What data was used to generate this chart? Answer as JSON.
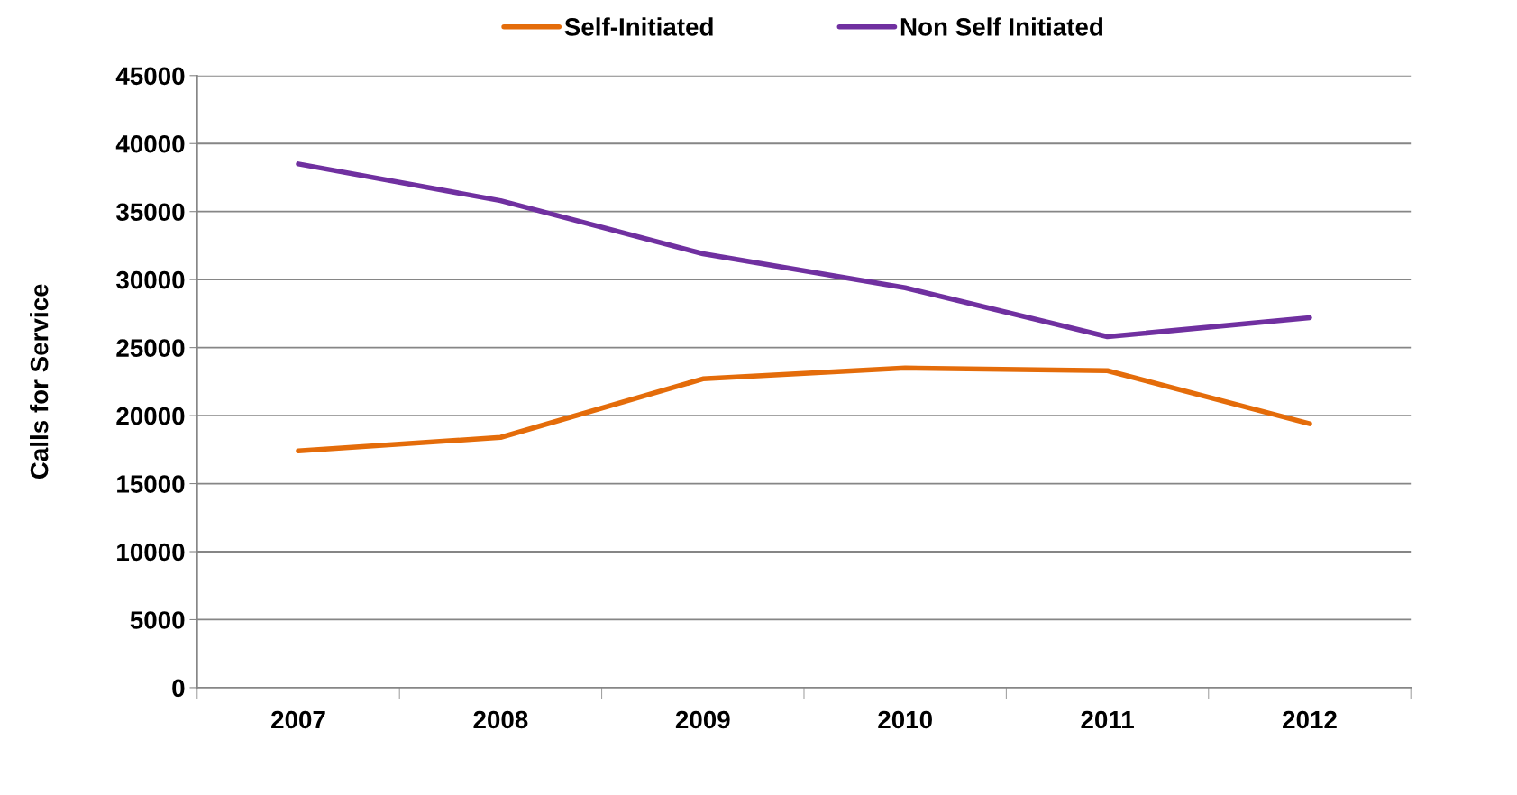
{
  "chart_data": {
    "type": "line",
    "ylabel": "Calls for Service",
    "categories": [
      "2007",
      "2008",
      "2009",
      "2010",
      "2011",
      "2012"
    ],
    "series": [
      {
        "name": "Self-Initiated",
        "color": "#e46c0a",
        "values": [
          17400,
          18400,
          22700,
          23500,
          23300,
          19400
        ]
      },
      {
        "name": "Non Self Initiated",
        "color": "#7030a0",
        "values": [
          38500,
          35800,
          31900,
          29400,
          25800,
          27200
        ]
      }
    ],
    "ylim": [
      0,
      45000
    ],
    "yticks": [
      0,
      5000,
      10000,
      15000,
      20000,
      25000,
      30000,
      35000,
      40000,
      45000
    ],
    "grid": "y",
    "legend": "top",
    "marker": "none",
    "line_style": "solid"
  }
}
